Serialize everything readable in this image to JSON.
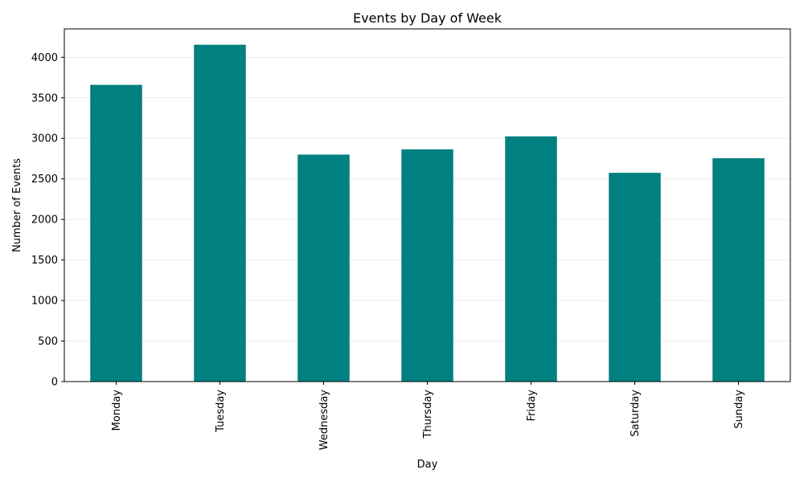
{
  "chart_data": {
    "type": "bar",
    "title": "Events by Day of Week",
    "xlabel": "Day",
    "ylabel": "Number of Events",
    "categories": [
      "Monday",
      "Tuesday",
      "Wednesday",
      "Thursday",
      "Friday",
      "Saturday",
      "Sunday"
    ],
    "values": [
      3660,
      4155,
      2800,
      2865,
      3025,
      2575,
      2755
    ],
    "ylim": [
      0,
      4350
    ],
    "yticks": [
      0,
      500,
      1000,
      1500,
      2000,
      2500,
      3000,
      3500,
      4000
    ],
    "ytick_labels": [
      "0",
      "500",
      "1000",
      "1500",
      "2000",
      "2500",
      "3000",
      "3500",
      "4000"
    ],
    "grid": "y-axis only",
    "legend": "none",
    "colors": {
      "bar": "#008080",
      "grid": "#e6e6e6",
      "axis": "#000000"
    }
  }
}
